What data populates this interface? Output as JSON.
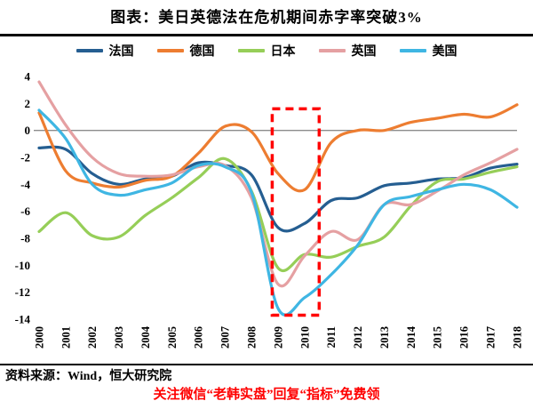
{
  "title": "图表：美日英德法在危机期间赤字率突破3%",
  "source": "资料来源：Wind，恒大研究院",
  "promo": "关注微信“老韩实盘”回复“指标”免费领",
  "chart_data": {
    "type": "line",
    "title": "图表：美日英德法在危机期间赤字率突破3%",
    "x": [
      2000,
      2001,
      2002,
      2003,
      2004,
      2005,
      2006,
      2007,
      2008,
      2009,
      2010,
      2011,
      2012,
      2013,
      2014,
      2015,
      2016,
      2017,
      2018
    ],
    "series": [
      {
        "name": "法国",
        "color": "#255E91",
        "values": [
          -1.3,
          -1.4,
          -3.2,
          -4.0,
          -3.6,
          -3.4,
          -2.4,
          -2.6,
          -3.3,
          -7.2,
          -6.9,
          -5.2,
          -5.0,
          -4.1,
          -3.9,
          -3.6,
          -3.5,
          -2.8,
          -2.5
        ]
      },
      {
        "name": "德国",
        "color": "#ED7D31",
        "values": [
          1.3,
          -3.0,
          -3.9,
          -4.2,
          -3.7,
          -3.4,
          -1.7,
          0.3,
          -0.1,
          -3.2,
          -4.4,
          -0.9,
          0.0,
          0.0,
          0.6,
          0.9,
          1.2,
          1.0,
          1.9
        ]
      },
      {
        "name": "日本",
        "color": "#96CE58",
        "values": [
          -7.5,
          -6.1,
          -7.8,
          -7.9,
          -6.3,
          -5.0,
          -3.5,
          -2.1,
          -4.5,
          -10.2,
          -9.2,
          -9.4,
          -8.6,
          -7.9,
          -5.6,
          -3.8,
          -3.6,
          -3.1,
          -2.7
        ]
      },
      {
        "name": "英国",
        "color": "#E5A0A2",
        "values": [
          3.6,
          0.4,
          -2.0,
          -3.2,
          -3.4,
          -3.3,
          -2.7,
          -2.6,
          -5.0,
          -11.4,
          -9.3,
          -7.5,
          -8.1,
          -5.5,
          -5.5,
          -4.5,
          -3.3,
          -2.4,
          -1.4
        ]
      },
      {
        "name": "美国",
        "color": "#3FB6E3",
        "values": [
          1.5,
          -0.6,
          -4.0,
          -4.8,
          -4.4,
          -3.9,
          -2.6,
          -2.7,
          -4.6,
          -13.2,
          -12.4,
          -10.7,
          -8.5,
          -5.5,
          -4.9,
          -4.4,
          -4.0,
          -4.4,
          -5.7
        ]
      }
    ],
    "ylim": [
      -14,
      4
    ],
    "yticks": [
      4,
      2,
      0,
      -2,
      -4,
      -6,
      -8,
      -10,
      -12,
      -14
    ],
    "zero_line": true,
    "grid": false,
    "legend_position": "top",
    "highlight_box": {
      "x_from": 2008.78,
      "x_to": 2010.55,
      "y_from": 1.6,
      "y_to": -13.7,
      "color": "#FF0000"
    }
  }
}
